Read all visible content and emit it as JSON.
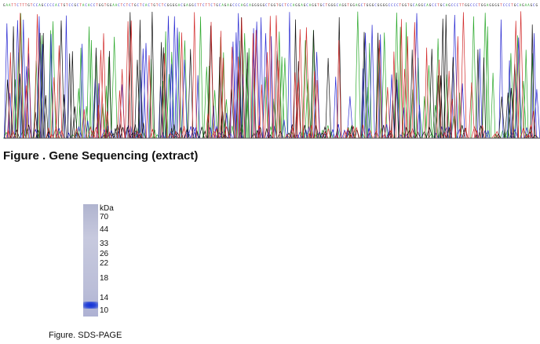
{
  "sequencing": {
    "caption": "Figure . Gene Sequencing (extract)",
    "base_colors": {
      "A": "#2aa82a",
      "C": "#2a2ad2",
      "G": "#111111",
      "T": "#d22a2a"
    },
    "axis_color": "#555555",
    "base_call_seed": "GAATTCTTTGTCCAGCCCCACTGTCCGCTACACCTGGTGGAACTCTCTGCTCACTGTCTCGGGGACGAGGCTTCTTCTGCAGAGCCCAGCAGGGGGCTGGTGCTCCAGGAGCAGGTGCTGGGCAGGTGGAGCTGGGCGGGGCCCCTGGTGCAGGCAGCCTGCAGCCCTTGGCCCTGGAGGGGTCCCTGCAGAAGCG"
  },
  "gel": {
    "unit": "kDa",
    "markers": [
      "70",
      "44",
      "33",
      "26",
      "22",
      "18",
      "14",
      "10"
    ],
    "band_color": "#1a3cd8",
    "caption": "Figure. SDS-PAGE"
  }
}
